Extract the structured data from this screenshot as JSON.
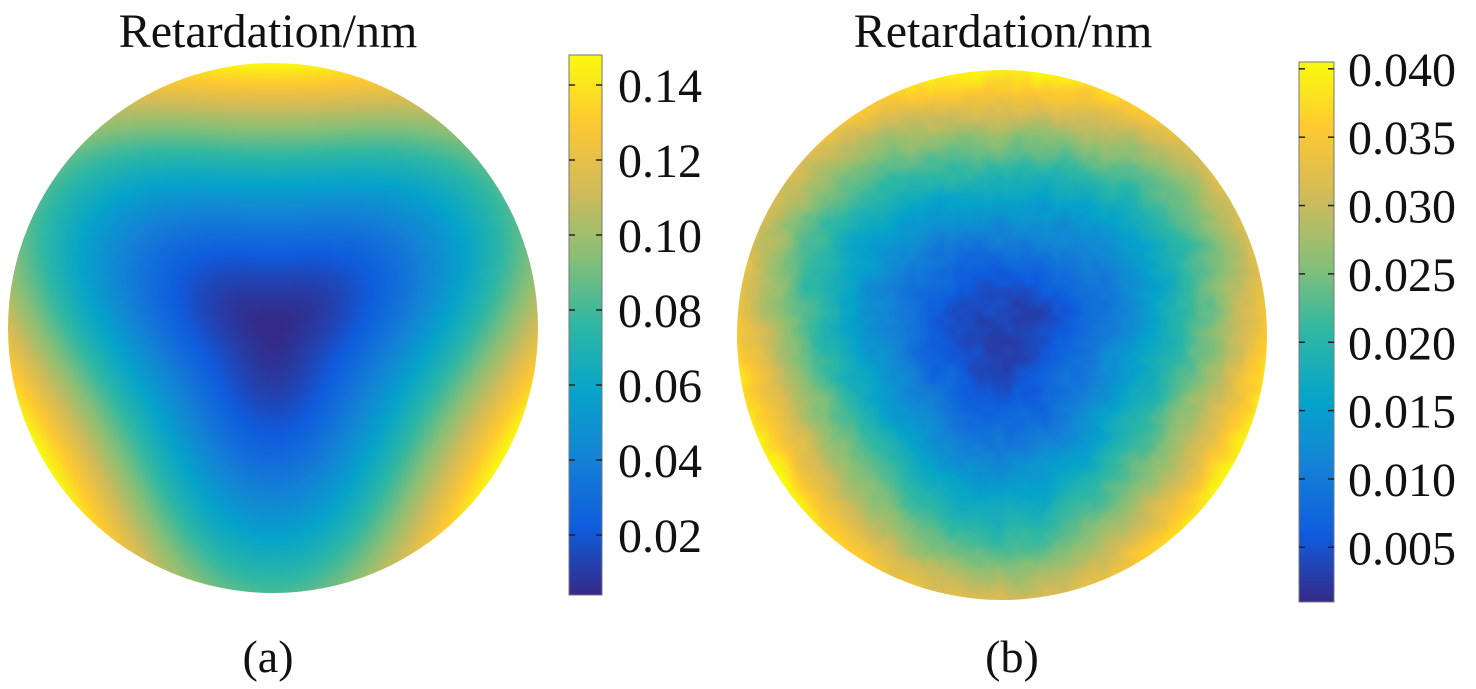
{
  "colors": {
    "parula": [
      "#352a87",
      "#0f5cdd",
      "#1481d6",
      "#06a4ca",
      "#2eb7a4",
      "#87bf77",
      "#d1bb59",
      "#fec832",
      "#f9fb0e"
    ],
    "tick_color": "#222222",
    "text_color": "#111111"
  },
  "chart_data": [
    {
      "type": "heatmap",
      "title": "Retardation/nm",
      "caption": "(a)",
      "colorbar": {
        "range": [
          0.004,
          0.148
        ],
        "ticks": [
          0.02,
          0.04,
          0.06,
          0.08,
          0.1,
          0.12,
          0.14
        ],
        "tick_labels": [
          "0.02",
          "0.04",
          "0.06",
          "0.08",
          "0.10",
          "0.12",
          "0.14"
        ]
      },
      "map": {
        "shape": "circular aperture",
        "pattern": "threefold (trefoil) symmetry",
        "center_value": 0.004,
        "edge_min_value": 0.082,
        "edge_max_value": 0.148,
        "max_lobe_angles_deg": [
          90,
          210,
          330
        ]
      }
    },
    {
      "type": "heatmap",
      "title": "Retardation/nm",
      "caption": "(b)",
      "colorbar": {
        "range": [
          0.001,
          0.0405
        ],
        "ticks": [
          0.005,
          0.01,
          0.015,
          0.02,
          0.025,
          0.03,
          0.035,
          0.04
        ],
        "tick_labels": [
          "0.005",
          "0.010",
          "0.015",
          "0.020",
          "0.025",
          "0.030",
          "0.035",
          "0.040"
        ]
      },
      "map": {
        "shape": "circular aperture",
        "pattern": "threefold (trefoil) symmetry, noisy",
        "center_value": 0.003,
        "edge_min_value": 0.031,
        "edge_max_value": 0.04,
        "max_lobe_angles_deg": [
          90,
          210,
          330
        ]
      }
    }
  ]
}
